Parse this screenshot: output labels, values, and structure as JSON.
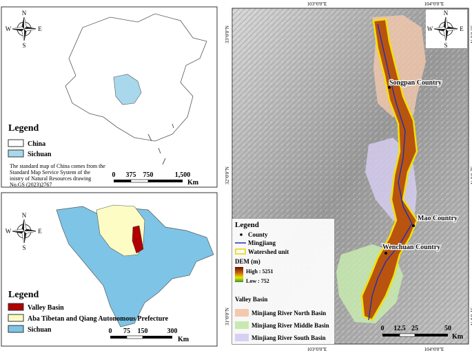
{
  "china_map": {
    "compass": {
      "n": "N",
      "e": "E",
      "s": "S",
      "w": "W"
    },
    "legend": {
      "title": "Legend",
      "items": [
        "China",
        "Sichuan"
      ]
    },
    "note_lines": [
      "The standard map of China comes from the",
      "Standard Map Service System of the",
      "inistry of Natural Resources drawing",
      "No.GS (2023)2767"
    ],
    "scale": {
      "labels": [
        "0",
        "375",
        "750",
        "1,500"
      ],
      "unit": "Km"
    }
  },
  "sichuan_map": {
    "compass": {
      "n": "N",
      "e": "E",
      "s": "S",
      "w": "W"
    },
    "legend": {
      "title": "Legend",
      "items": [
        "Valley Basin",
        "Aba Tibetan and Qiang Autonomous Prefecture",
        "Sichuan"
      ]
    },
    "scale": {
      "labels": [
        "0",
        "75",
        "150",
        "300"
      ],
      "unit": "Km"
    }
  },
  "main_map": {
    "compass": {
      "n": "N",
      "e": "E",
      "s": "S",
      "w": "W"
    },
    "longitudes": [
      "103°0'0\"E",
      "104°0'0\"E"
    ],
    "latitudes": [
      "33°0'0\"N",
      "32°0'0\"N",
      "31°0'0\"N"
    ],
    "counties": [
      "Songpan Country",
      "Mao Country",
      "Wenchuan Country"
    ],
    "legend": {
      "title": "Legend",
      "county": "County",
      "river": "Mingjiang",
      "watershed": "Watershed unit",
      "dem_title": "DEM (m)",
      "dem_high": "High : 5251",
      "dem_low": "Low : 752",
      "basin_title": "Valley Basin",
      "basins": [
        "Minjiang River North Basin",
        "Minjiang River Middle Basin",
        "Minjiang River South Basin"
      ]
    },
    "scale": {
      "labels": [
        "0",
        "12.5",
        "25",
        "50"
      ],
      "unit": "Km"
    }
  }
}
